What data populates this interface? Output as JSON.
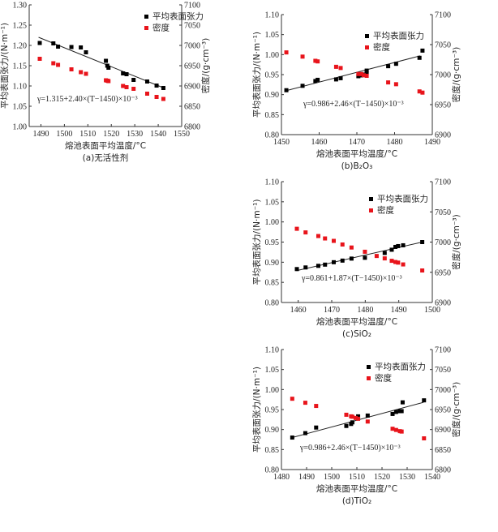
{
  "chart_data": [
    {
      "id": "a",
      "type": "scatter",
      "caption": "(a)无活性剂",
      "xlabel": "熔池表面平均温度/°C",
      "ylabel": "平均表面张力/(N·m⁻¹)",
      "y2label": "密度/(g·cm⁻³)",
      "xlim": [
        1485,
        1550
      ],
      "xticks": [
        1490,
        1500,
        1510,
        1520,
        1530,
        1540,
        1550
      ],
      "ylim": [
        1.0,
        1.3
      ],
      "yticks": [
        "1.00",
        "1.05",
        "1.10",
        "1.15",
        "1.20",
        "1.25",
        "1.30"
      ],
      "y2lim": [
        6800,
        7100
      ],
      "y2ticks": [
        "6800",
        "6850",
        "6900",
        "6950",
        "7000",
        "7050",
        "7100"
      ],
      "legend": [
        "平均表面张力",
        "密度"
      ],
      "legend_position": "top-right",
      "equation": "γ=1.315+2.40×(T−1450)×10⁻³",
      "fit": {
        "x": [
          1489,
          1542
        ],
        "y": [
          1.22,
          1.096
        ]
      },
      "series": [
        {
          "name": "平均表面张力",
          "axis": "left",
          "color": "#000000",
          "x": [
            1489.5,
            1495.3,
            1497.3,
            1503,
            1507,
            1509.2,
            1517.7,
            1518.3,
            1518.8,
            1525,
            1526.5,
            1529.5,
            1535.3,
            1539.3,
            1542.2
          ],
          "y": [
            1.206,
            1.205,
            1.197,
            1.196,
            1.195,
            1.183,
            1.162,
            1.15,
            1.145,
            1.131,
            1.129,
            1.115,
            1.111,
            1.101,
            1.095
          ]
        },
        {
          "name": "密度",
          "axis": "right",
          "color": "#e8141b",
          "x": [
            1489.5,
            1495.3,
            1497.3,
            1503,
            1507,
            1509.2,
            1517.7,
            1518.3,
            1518.8,
            1525,
            1526.5,
            1529.5,
            1535.3,
            1539.3,
            1542.2
          ],
          "y": [
            6967,
            6956,
            6952,
            6941,
            6934,
            6930,
            6914,
            6913,
            6912,
            6900,
            6897,
            6893,
            6881,
            6873,
            6868
          ]
        }
      ]
    },
    {
      "id": "b",
      "type": "scatter",
      "caption": "(b)B₂O₃",
      "xlabel": "熔池表面平均温度/°C",
      "ylabel": "平均表面张力/(N·m⁻¹)",
      "y2label": "密度/(g·cm⁻³)",
      "xlim": [
        1450,
        1490
      ],
      "xticks": [
        1450,
        1460,
        1470,
        1480,
        1490
      ],
      "ylim": [
        0.8,
        1.1
      ],
      "yticks": [
        "0.80",
        "0.85",
        "0.90",
        "0.95",
        "1.00",
        "1.05",
        "1.10"
      ],
      "y2lim": [
        6900,
        7100
      ],
      "y2ticks": [
        "6900",
        "6950",
        "7000",
        "7050",
        "7100"
      ],
      "legend": [
        "平均表面张力",
        "密度"
      ],
      "legend_position": "top-right",
      "equation": "γ=0.986+2.46×(T−1450)×10⁻³",
      "fit": {
        "x": [
          1451.3,
          1486.8
        ],
        "y": [
          0.91,
          0.997
        ]
      },
      "series": [
        {
          "name": "平均表面张力",
          "axis": "left",
          "color": "#000000",
          "x": [
            1451.3,
            1455.6,
            1459,
            1459.6,
            1464.5,
            1465.7,
            1470.4,
            1471.2,
            1471.8,
            1472.6,
            1472.6,
            1478.3,
            1480.4,
            1486.6,
            1487.4
          ],
          "y": [
            0.911,
            0.922,
            0.934,
            0.937,
            0.938,
            0.941,
            0.946,
            0.948,
            0.95,
            0.955,
            0.96,
            0.971,
            0.977,
            0.992,
            1.01
          ]
        },
        {
          "name": "密度",
          "axis": "right",
          "color": "#e8141b",
          "x": [
            1451.3,
            1455.6,
            1459,
            1459.6,
            1464.5,
            1465.7,
            1470.4,
            1471.2,
            1471.8,
            1472.6,
            1478.3,
            1480.4,
            1486.6,
            1487.4
          ],
          "y": [
            7037,
            7030,
            7023,
            7022,
            7013,
            7011,
            7001,
            7001,
            6999,
            6998,
            6987,
            6984,
            6972,
            6970
          ]
        }
      ]
    },
    {
      "id": "c",
      "type": "scatter",
      "caption": "(c)SiO₂",
      "xlabel": "熔池表面平均温度/°C",
      "ylabel": "平均表面张力/(N·m⁻¹)",
      "y2label": "密度/(g·cm⁻³)",
      "xlim": [
        1455,
        1500
      ],
      "xticks": [
        1460,
        1470,
        1480,
        1490,
        1500
      ],
      "ylim": [
        0.8,
        1.1
      ],
      "yticks": [
        "0.80",
        "0.85",
        "0.90",
        "0.95",
        "1.00",
        "1.05",
        "1.10"
      ],
      "y2lim": [
        6900,
        7100
      ],
      "y2ticks": [
        "6900",
        "6950",
        "7000",
        "7050",
        "7100"
      ],
      "legend": [
        "平均表面张力",
        "密度"
      ],
      "legend_position": "top-right",
      "equation": "γ=0.861+1.87×(T−1450)×10⁻³",
      "fit": {
        "x": [
          1459.5,
          1497
        ],
        "y": [
          0.879,
          0.95
        ]
      },
      "series": [
        {
          "name": "平均表面张力",
          "axis": "left",
          "color": "#000000",
          "x": [
            1459.6,
            1462.2,
            1466,
            1468,
            1470.6,
            1473.2,
            1475.9,
            1479.9,
            1485.8,
            1487.9,
            1489,
            1489.8,
            1491.3,
            1497
          ],
          "y": [
            0.883,
            0.887,
            0.891,
            0.894,
            0.9,
            0.904,
            0.909,
            0.911,
            0.923,
            0.931,
            0.938,
            0.94,
            0.942,
            0.95
          ]
        },
        {
          "name": "密度",
          "axis": "right",
          "color": "#e8141b",
          "x": [
            1459.6,
            1462.2,
            1466,
            1468,
            1470.6,
            1473.2,
            1475.9,
            1479.9,
            1483.4,
            1485.8,
            1487.9,
            1489,
            1489.8,
            1491.3,
            1497
          ],
          "y": [
            7022,
            7016,
            7010,
            7006,
            7002,
            6996,
            6991,
            6984,
            6977,
            6973,
            6969,
            6967,
            6966,
            6963,
            6953
          ]
        }
      ]
    },
    {
      "id": "d",
      "type": "scatter",
      "caption": "(d)TiO₂",
      "xlabel": "熔池表面平均温度/°C",
      "ylabel": "平均表面张力/(N·m⁻¹)",
      "y2label": "密度/(g·cm⁻³)",
      "xlim": [
        1480,
        1540
      ],
      "xticks": [
        1480,
        1490,
        1500,
        1510,
        1520,
        1530,
        1540
      ],
      "ylim": [
        0.8,
        1.1
      ],
      "yticks": [
        "0.80",
        "0.85",
        "0.90",
        "0.95",
        "1.00",
        "1.05",
        "1.10"
      ],
      "y2lim": [
        6800,
        7100
      ],
      "y2ticks": [
        "6800",
        "6850",
        "6900",
        "6950",
        "7000",
        "7050",
        "7100"
      ],
      "legend": [
        "平均表面张力",
        "密度"
      ],
      "legend_position": "top-right",
      "equation": "γ=0.986+2.46×(T−1450)×10⁻³",
      "fit": {
        "x": [
          1484.3,
          1536.5
        ],
        "y": [
          0.88,
          0.968
        ]
      },
      "series": [
        {
          "name": "平均表面张力",
          "axis": "left",
          "color": "#000000",
          "x": [
            1484.3,
            1489.5,
            1493.8,
            1505.8,
            1507.7,
            1508.2,
            1510.5,
            1514.3,
            1524.2,
            1525.6,
            1527.1,
            1527.8,
            1528.2,
            1536.7
          ],
          "y": [
            0.88,
            0.891,
            0.905,
            0.909,
            0.914,
            0.918,
            0.933,
            0.935,
            0.939,
            0.944,
            0.946,
            0.946,
            0.968,
            0.973
          ]
        },
        {
          "name": "密度",
          "axis": "right",
          "color": "#e8141b",
          "x": [
            1484.3,
            1489.5,
            1493.8,
            1505.8,
            1507.7,
            1508.2,
            1509.5,
            1510.5,
            1514.3,
            1524.2,
            1525.6,
            1527.1,
            1527.8,
            1536.7
          ],
          "y": [
            6977,
            6967,
            6959,
            6937,
            6933,
            6932,
            6929,
            6927,
            6920,
            6902,
            6899,
            6896,
            6895,
            6878
          ]
        }
      ]
    }
  ]
}
